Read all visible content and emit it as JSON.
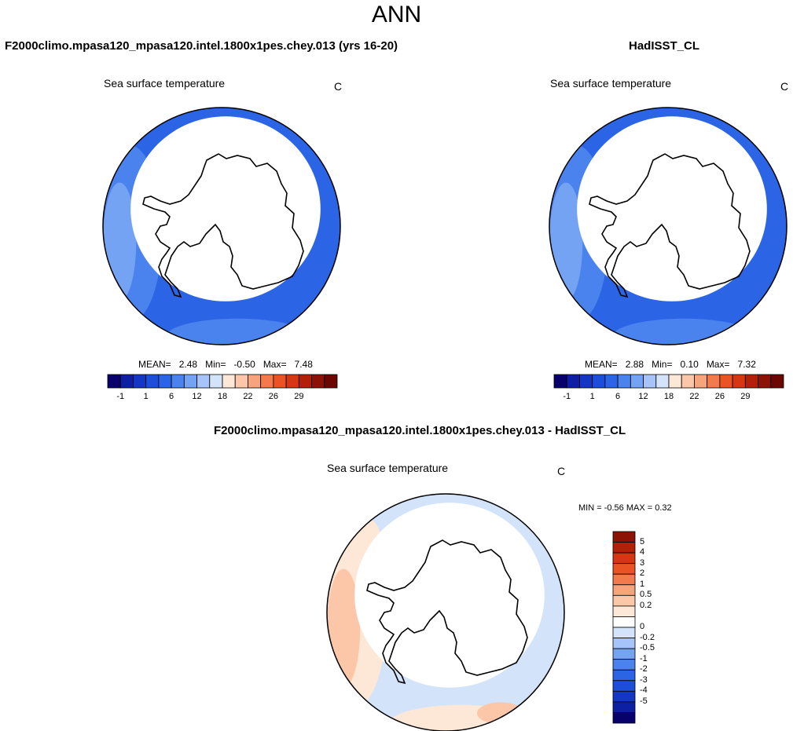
{
  "page_title": "ANN",
  "panels": {
    "model": {
      "title": "F2000climo.mpasa120_mpasa120.intel.1800x1pes.chey.013 (yrs 16-20)",
      "variable": "Sea surface temperature",
      "units": "C",
      "stats": {
        "mean_label": "MEAN=",
        "mean": "2.48",
        "min_label": "Min=",
        "min": "-0.50",
        "max_label": "Max=",
        "max": "7.48"
      }
    },
    "obs": {
      "title": "HadISST_CL",
      "variable": "Sea surface temperature",
      "units": "C",
      "stats": {
        "mean_label": "MEAN=",
        "mean": "2.88",
        "min_label": "Min=",
        "min": "0.10",
        "max_label": "Max=",
        "max": "7.32"
      }
    },
    "diff": {
      "title": "F2000climo.mpasa120_mpasa120.intel.1800x1pes.chey.013 - HadISST_CL",
      "variable": "Sea surface temperature",
      "units": "C",
      "stats_text": "MIN =  -0.56 MAX =   0.32"
    }
  },
  "chart_data": [
    {
      "type": "heatmap",
      "projection": "south polar stereographic",
      "title": "F2000climo.mpasa120_mpasa120.intel.1800x1pes.chey.013 (yrs 16-20)",
      "variable": "Sea surface temperature",
      "units": "C",
      "mean": 2.48,
      "min": -0.5,
      "max": 7.48,
      "colorbar_ticks": [
        "-1",
        "1",
        "6",
        "12",
        "18",
        "22",
        "26",
        "29"
      ],
      "colorbar_colors": [
        "#08006b",
        "#0d1fa3",
        "#1437c3",
        "#1c4fd9",
        "#2b65e6",
        "#4a82ee",
        "#75a3f3",
        "#a6c4f7",
        "#d3e3fa",
        "#fde7d6",
        "#fbc7a8",
        "#f7a37c",
        "#f37a4d",
        "#ea5323",
        "#d43712",
        "#b2200a",
        "#8c1205",
        "#6b0700"
      ],
      "field_colors": [
        "#2b65e6",
        "#4a82ee",
        "#75a3f3"
      ]
    },
    {
      "type": "heatmap",
      "projection": "south polar stereographic",
      "title": "HadISST_CL",
      "variable": "Sea surface temperature",
      "units": "C",
      "mean": 2.88,
      "min": 0.1,
      "max": 7.32,
      "colorbar_ticks": [
        "-1",
        "1",
        "6",
        "12",
        "18",
        "22",
        "26",
        "29"
      ],
      "colorbar_colors": [
        "#08006b",
        "#0d1fa3",
        "#1437c3",
        "#1c4fd9",
        "#2b65e6",
        "#4a82ee",
        "#75a3f3",
        "#a6c4f7",
        "#d3e3fa",
        "#fde7d6",
        "#fbc7a8",
        "#f7a37c",
        "#f37a4d",
        "#ea5323",
        "#d43712",
        "#b2200a",
        "#8c1205",
        "#6b0700"
      ],
      "field_colors": [
        "#2b65e6",
        "#4a82ee",
        "#75a3f3"
      ]
    },
    {
      "type": "heatmap",
      "projection": "south polar stereographic",
      "title": "F2000climo.mpasa120_mpasa120.intel.1800x1pes.chey.013 - HadISST_CL",
      "variable": "Sea surface temperature",
      "units": "C",
      "min": -0.56,
      "max": 0.32,
      "colorbar_orientation": "vertical",
      "colorbar_ticks": [
        "5",
        "4",
        "3",
        "2",
        "1",
        "0.5",
        "0.2",
        "0",
        "-0.2",
        "-0.5",
        "-1",
        "-2",
        "-3",
        "-4",
        "-5"
      ],
      "colorbar_colors": [
        "#8c1205",
        "#b2200a",
        "#d43712",
        "#ea5323",
        "#f37a4d",
        "#f7a37c",
        "#fbc7a8",
        "#fde7d6",
        "#ffffff",
        "#d3e3fa",
        "#a6c4f7",
        "#75a3f3",
        "#4a82ee",
        "#2b65e6",
        "#1c4fd9",
        "#1437c3",
        "#0d1fa3",
        "#08006b"
      ],
      "field_colors": [
        "#d3e3fa",
        "#fde7d6",
        "#fbc7a8"
      ]
    }
  ]
}
